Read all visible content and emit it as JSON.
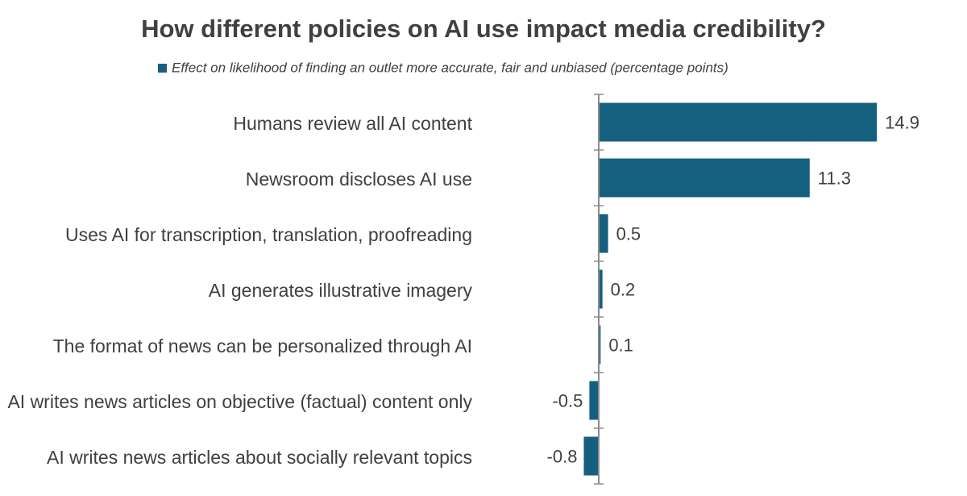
{
  "chart_data": {
    "type": "hbar",
    "title": "How different policies on AI use impact media credibility?",
    "categories": [
      "Humans review all AI content",
      "Newsroom discloses AI use",
      "Uses AI for transcription, translation, proofreading",
      "AI generates illustrative imagery",
      "The format of news can be personalized through AI",
      "AI writes news articles on objective (factual) content only",
      "AI writes news articles about socially relevant topics"
    ],
    "series": [
      {
        "name": "Effect on likelihood of finding an outlet more accurate, fair and unbiased (percentage points)",
        "color": "#16607f",
        "values": [
          14.9,
          11.3,
          0.5,
          0.2,
          0.1,
          -0.5,
          -0.8
        ]
      }
    ],
    "xlim": [
      -6,
      18
    ]
  }
}
